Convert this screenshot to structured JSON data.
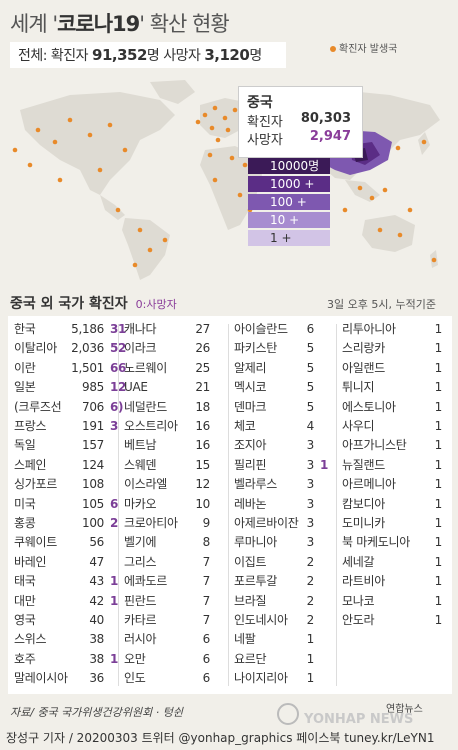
{
  "header": {
    "title_pre": "세계 '",
    "title_bold": "코로나19",
    "title_mid": "' 확산",
    "title_post": " 현황",
    "summary_total_label": "전체:  확진자 ",
    "summary_total_value": "91,352",
    "summary_total_unit": "명 ",
    "summary_death_label": "사망자 ",
    "summary_death_value": "3,120",
    "summary_death_unit": "명",
    "occurrence_legend": "확진자 발생국"
  },
  "china": {
    "name": "중국",
    "confirmed_label": "확진자",
    "confirmed_value": "80,303",
    "deaths_label": "사망자",
    "deaths_value": "2,947"
  },
  "map_legend": [
    {
      "label": "10000명 +",
      "color": "#3b1a57"
    },
    {
      "label": "1000 +",
      "color": "#5b2d86"
    },
    {
      "label": "100 +",
      "color": "#7e58b0"
    },
    {
      "label": "10 +",
      "color": "#a78cd0"
    },
    {
      "label": "1 +",
      "color": "#d2c4e6"
    }
  ],
  "colors": {
    "dot": "#e88a2a",
    "china_dark": "#3b1a57",
    "death": "#7b3f97",
    "land": "#dedbd3"
  },
  "section": {
    "title": "중국 외 국가 확진자",
    "death_note": "0:사망자",
    "timestamp": "3일 오후 5시, 누적기준"
  },
  "chart_data": {
    "type": "table",
    "columns": [
      [
        {
          "country": "한국",
          "confirmed": "5,186",
          "deaths": "31"
        },
        {
          "country": "이탈리아",
          "confirmed": "2,036",
          "deaths": "52"
        },
        {
          "country": "이란",
          "confirmed": "1,501",
          "deaths": "66"
        },
        {
          "country": "일본",
          "confirmed": "985",
          "deaths": "12"
        },
        {
          "country": "(크루즈선",
          "confirmed": "706",
          "deaths": "6)"
        },
        {
          "country": "프랑스",
          "confirmed": "191",
          "deaths": "3"
        },
        {
          "country": "독일",
          "confirmed": "157",
          "deaths": ""
        },
        {
          "country": "스페인",
          "confirmed": "124",
          "deaths": ""
        },
        {
          "country": "싱가포르",
          "confirmed": "108",
          "deaths": ""
        },
        {
          "country": "미국",
          "confirmed": "105",
          "deaths": "6"
        },
        {
          "country": "홍콩",
          "confirmed": "100",
          "deaths": "2"
        },
        {
          "country": "쿠웨이트",
          "confirmed": "56",
          "deaths": ""
        },
        {
          "country": "바레인",
          "confirmed": "47",
          "deaths": ""
        },
        {
          "country": "태국",
          "confirmed": "43",
          "deaths": "1"
        },
        {
          "country": "대만",
          "confirmed": "42",
          "deaths": "1"
        },
        {
          "country": "영국",
          "confirmed": "40",
          "deaths": ""
        },
        {
          "country": "스위스",
          "confirmed": "38",
          "deaths": ""
        },
        {
          "country": "호주",
          "confirmed": "38",
          "deaths": "1"
        },
        {
          "country": "말레이시아",
          "confirmed": "36",
          "deaths": ""
        }
      ],
      [
        {
          "country": "캐나다",
          "confirmed": "27",
          "deaths": ""
        },
        {
          "country": "이라크",
          "confirmed": "26",
          "deaths": ""
        },
        {
          "country": "노르웨이",
          "confirmed": "25",
          "deaths": ""
        },
        {
          "country": "UAE",
          "confirmed": "21",
          "deaths": ""
        },
        {
          "country": "네덜란드",
          "confirmed": "18",
          "deaths": ""
        },
        {
          "country": "오스트리아",
          "confirmed": "16",
          "deaths": ""
        },
        {
          "country": "베트남",
          "confirmed": "16",
          "deaths": ""
        },
        {
          "country": "스웨덴",
          "confirmed": "15",
          "deaths": ""
        },
        {
          "country": "이스라엘",
          "confirmed": "12",
          "deaths": ""
        },
        {
          "country": "마카오",
          "confirmed": "10",
          "deaths": ""
        },
        {
          "country": "크로아티아",
          "confirmed": "9",
          "deaths": ""
        },
        {
          "country": "벨기에",
          "confirmed": "8",
          "deaths": ""
        },
        {
          "country": "그리스",
          "confirmed": "7",
          "deaths": ""
        },
        {
          "country": "에콰도르",
          "confirmed": "7",
          "deaths": ""
        },
        {
          "country": "핀란드",
          "confirmed": "7",
          "deaths": ""
        },
        {
          "country": "카타르",
          "confirmed": "7",
          "deaths": ""
        },
        {
          "country": "러시아",
          "confirmed": "6",
          "deaths": ""
        },
        {
          "country": "오만",
          "confirmed": "6",
          "deaths": ""
        },
        {
          "country": "인도",
          "confirmed": "6",
          "deaths": ""
        }
      ],
      [
        {
          "country": "아이슬란드",
          "confirmed": "6",
          "deaths": ""
        },
        {
          "country": "파키스탄",
          "confirmed": "5",
          "deaths": ""
        },
        {
          "country": "알제리",
          "confirmed": "5",
          "deaths": ""
        },
        {
          "country": "멕시코",
          "confirmed": "5",
          "deaths": ""
        },
        {
          "country": "덴마크",
          "confirmed": "5",
          "deaths": ""
        },
        {
          "country": "체코",
          "confirmed": "4",
          "deaths": ""
        },
        {
          "country": "조지아",
          "confirmed": "3",
          "deaths": ""
        },
        {
          "country": "필리핀",
          "confirmed": "3",
          "deaths": "1"
        },
        {
          "country": "벨라루스",
          "confirmed": "3",
          "deaths": ""
        },
        {
          "country": "레바논",
          "confirmed": "3",
          "deaths": ""
        },
        {
          "country": "아제르바이잔",
          "confirmed": "3",
          "deaths": ""
        },
        {
          "country": "루마니아",
          "confirmed": "3",
          "deaths": ""
        },
        {
          "country": "이집트",
          "confirmed": "2",
          "deaths": ""
        },
        {
          "country": "포르투갈",
          "confirmed": "2",
          "deaths": ""
        },
        {
          "country": "브라질",
          "confirmed": "2",
          "deaths": ""
        },
        {
          "country": "인도네시아",
          "confirmed": "2",
          "deaths": ""
        },
        {
          "country": "네팔",
          "confirmed": "1",
          "deaths": ""
        },
        {
          "country": "요르단",
          "confirmed": "1",
          "deaths": ""
        },
        {
          "country": "나이지리아",
          "confirmed": "1",
          "deaths": ""
        }
      ],
      [
        {
          "country": "리투아니아",
          "confirmed": "1",
          "deaths": ""
        },
        {
          "country": "스리랑카",
          "confirmed": "1",
          "deaths": ""
        },
        {
          "country": "아일랜드",
          "confirmed": "1",
          "deaths": ""
        },
        {
          "country": "튀니지",
          "confirmed": "1",
          "deaths": ""
        },
        {
          "country": "에스토니아",
          "confirmed": "1",
          "deaths": ""
        },
        {
          "country": "사우디",
          "confirmed": "1",
          "deaths": ""
        },
        {
          "country": "아프가니스탄",
          "confirmed": "1",
          "deaths": ""
        },
        {
          "country": "뉴질랜드",
          "confirmed": "1",
          "deaths": ""
        },
        {
          "country": "아르메니아",
          "confirmed": "1",
          "deaths": ""
        },
        {
          "country": "캄보디아",
          "confirmed": "1",
          "deaths": ""
        },
        {
          "country": "도미니카",
          "confirmed": "1",
          "deaths": ""
        },
        {
          "country": "북 마케도니아",
          "confirmed": "1",
          "deaths": ""
        },
        {
          "country": "세네갈",
          "confirmed": "1",
          "deaths": ""
        },
        {
          "country": "라트비아",
          "confirmed": "1",
          "deaths": ""
        },
        {
          "country": "모나코",
          "confirmed": "1",
          "deaths": ""
        },
        {
          "country": "안도라",
          "confirmed": "1",
          "deaths": ""
        }
      ]
    ]
  },
  "footer": {
    "source": "자료/  중국 국가위생건강위원회 · 텅쉰",
    "credit": "장성구 기자 / 20200303  트위터 @yonhap_graphics  페이스북 tuney.kr/LeYN1",
    "logo_kr": "연합뉴스",
    "logo_en": "YONHAP NEWS"
  }
}
